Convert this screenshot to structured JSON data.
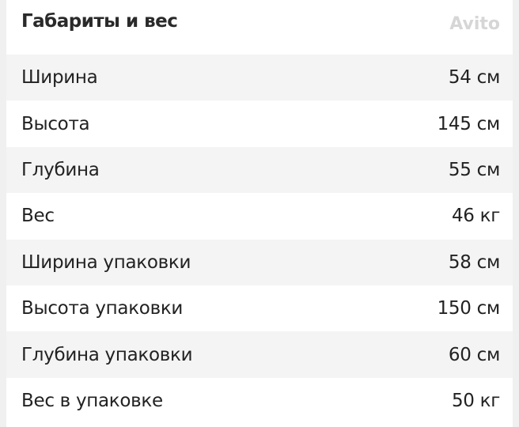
{
  "title": "Габариты и вес",
  "rows": [
    {
      "label": "Ширина",
      "value": "54 см"
    },
    {
      "label": "Высота",
      "value": "145 см"
    },
    {
      "label": "Глубина",
      "value": "55 см"
    },
    {
      "label": "Вес",
      "value": "46 кг"
    },
    {
      "label": "Ширина упаковки",
      "value": "58 см"
    },
    {
      "label": "Высота упаковки",
      "value": "150 см"
    },
    {
      "label": "Глубина упаковки",
      "value": "60 см"
    },
    {
      "label": "Вес в упаковке",
      "value": "50 кг"
    }
  ],
  "watermark": "Avito"
}
